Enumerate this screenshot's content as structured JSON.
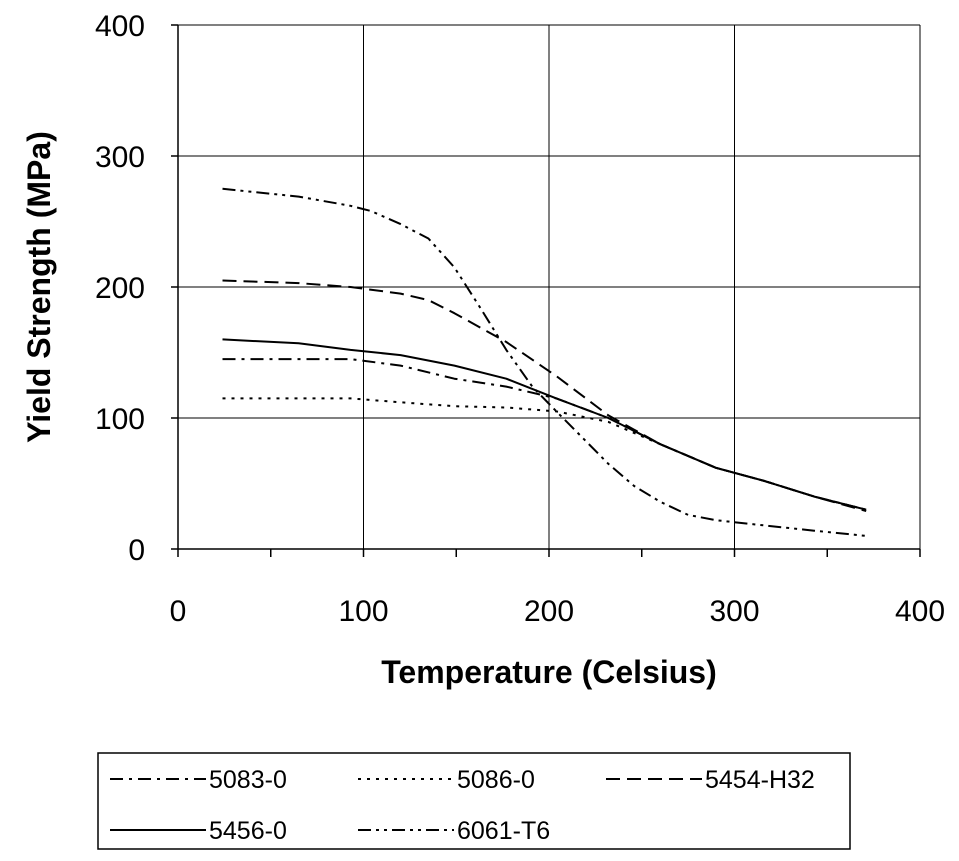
{
  "chart_data": {
    "type": "line",
    "title": "",
    "xlabel": "Temperature (Celsius)",
    "ylabel": "Yield Strength (MPa)",
    "xlim": [
      0,
      400
    ],
    "ylim": [
      0,
      400
    ],
    "x_ticks": [
      0,
      100,
      200,
      300,
      400
    ],
    "y_ticks": [
      0,
      100,
      200,
      300,
      400
    ],
    "x_tick_labels": [
      "0",
      "100",
      "200",
      "300",
      "400"
    ],
    "y_tick_labels": [
      "0",
      "100",
      "200",
      "300",
      "400"
    ],
    "grid": "major, both axes",
    "legend_position": "bottom",
    "series": [
      {
        "name": "5083-0",
        "style": "dash-dot",
        "points": [
          [
            24,
            145
          ],
          [
            65,
            145
          ],
          [
            93,
            145
          ],
          [
            120,
            140
          ],
          [
            149,
            130
          ],
          [
            177,
            124
          ],
          [
            204,
            115
          ],
          [
            232,
            100
          ],
          [
            260,
            80
          ],
          [
            290,
            62
          ],
          [
            316,
            52
          ],
          [
            343,
            40
          ],
          [
            371,
            30
          ]
        ]
      },
      {
        "name": "5086-0",
        "style": "dotted",
        "points": [
          [
            24,
            115
          ],
          [
            65,
            115
          ],
          [
            93,
            115
          ],
          [
            120,
            112
          ],
          [
            149,
            109
          ],
          [
            177,
            108
          ],
          [
            204,
            105
          ],
          [
            232,
            97
          ],
          [
            260,
            80
          ],
          [
            290,
            62
          ],
          [
            316,
            52
          ],
          [
            343,
            40
          ],
          [
            371,
            30
          ]
        ]
      },
      {
        "name": "5454-H32",
        "style": "dashed",
        "points": [
          [
            24,
            205
          ],
          [
            65,
            203
          ],
          [
            93,
            200
          ],
          [
            120,
            195
          ],
          [
            135,
            190
          ],
          [
            149,
            180
          ],
          [
            177,
            158
          ],
          [
            204,
            132
          ],
          [
            232,
            102
          ],
          [
            260,
            80
          ],
          [
            290,
            62
          ],
          [
            316,
            52
          ],
          [
            343,
            40
          ],
          [
            371,
            29
          ]
        ]
      },
      {
        "name": "5456-0",
        "style": "solid",
        "points": [
          [
            24,
            160
          ],
          [
            65,
            157
          ],
          [
            93,
            152
          ],
          [
            120,
            148
          ],
          [
            149,
            140
          ],
          [
            177,
            130
          ],
          [
            204,
            115
          ],
          [
            232,
            100
          ],
          [
            260,
            80
          ],
          [
            290,
            62
          ],
          [
            316,
            52
          ],
          [
            343,
            40
          ],
          [
            371,
            30
          ]
        ]
      },
      {
        "name": "6061-T6",
        "style": "dash-dot-dot",
        "points": [
          [
            24,
            275
          ],
          [
            65,
            269
          ],
          [
            93,
            262
          ],
          [
            104,
            258
          ],
          [
            120,
            248
          ],
          [
            135,
            237
          ],
          [
            149,
            215
          ],
          [
            163,
            184
          ],
          [
            177,
            152
          ],
          [
            191,
            124
          ],
          [
            204,
            105
          ],
          [
            218,
            85
          ],
          [
            232,
            65
          ],
          [
            246,
            48
          ],
          [
            260,
            36
          ],
          [
            275,
            26
          ],
          [
            290,
            22
          ],
          [
            316,
            18
          ],
          [
            343,
            14
          ],
          [
            371,
            10
          ]
        ]
      }
    ]
  }
}
